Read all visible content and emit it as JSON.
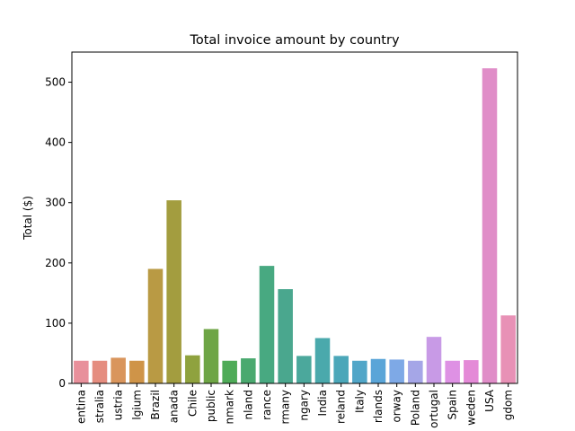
{
  "chart_data": {
    "type": "bar",
    "title": "Total invoice amount by country",
    "xlabel": "",
    "ylabel": "Total ($)",
    "ylim": [
      0,
      550
    ],
    "yticks": [
      0,
      100,
      200,
      300,
      400,
      500
    ],
    "grid": false,
    "categories": [
      "entina",
      "stralia",
      "ustria",
      "lgium",
      "Brazil",
      "anada",
      "Chile",
      "public",
      "nmark",
      "nland",
      "rance",
      "rmany",
      "ngary",
      "India",
      "reland",
      "Italy",
      "rlands",
      "orway",
      "Poland",
      "ortugal",
      "Spain",
      "weden",
      "USA",
      "gdom"
    ],
    "values": [
      37.62,
      37.62,
      42.62,
      37.62,
      190.1,
      303.96,
      46.62,
      90.24,
      37.62,
      41.62,
      195.1,
      156.48,
      45.62,
      75.26,
      45.62,
      37.62,
      40.62,
      39.62,
      37.62,
      77.24,
      37.62,
      38.62,
      523.06,
      112.86
    ],
    "colors": [
      "#e8909b",
      "#e58d7f",
      "#d9955c",
      "#cf9448",
      "#b99a44",
      "#a39d3f",
      "#8fa23e",
      "#6ea545",
      "#4fab58",
      "#4aa96f",
      "#48a981",
      "#4aa78e",
      "#4ba89c",
      "#4aa9ac",
      "#4ba7b9",
      "#51a6c8",
      "#5aa5d8",
      "#7ea9e6",
      "#a5a6e7",
      "#c89ae6",
      "#de91e4",
      "#e48ad7",
      "#e08dc8",
      "#e891b6"
    ]
  }
}
